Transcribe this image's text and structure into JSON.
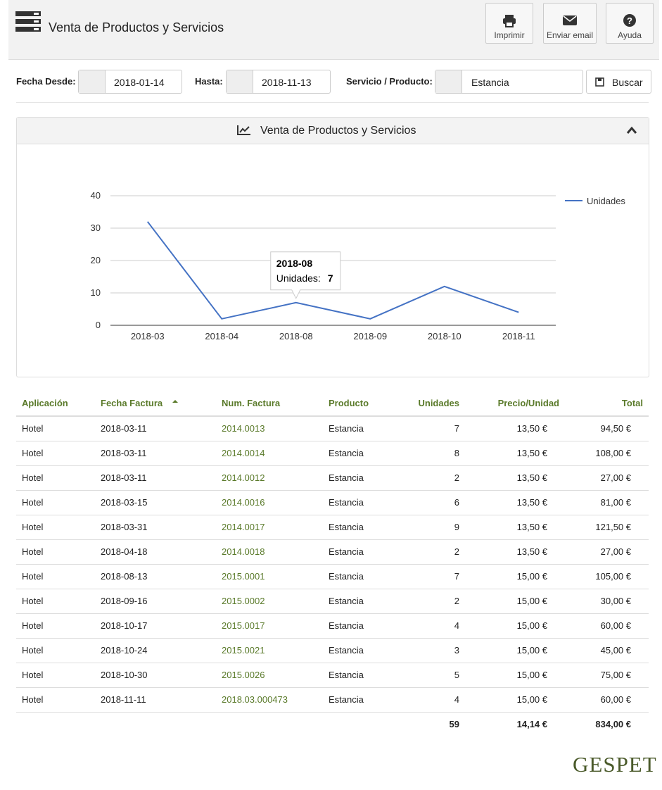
{
  "header": {
    "title": "Venta de Productos y Servicios",
    "buttons": [
      "Imprimir",
      "Enviar email",
      "Ayuda"
    ]
  },
  "filters": {
    "from_label": "Fecha Desde:",
    "from_value": "2018-01-14",
    "to_label": "Hasta:",
    "to_value": "2018-11-13",
    "product_label": "Servicio / Producto:",
    "product_value": "Estancia",
    "search_button": "Buscar"
  },
  "panel": {
    "title": "Venta de Productos y Servicios"
  },
  "chart_data": {
    "type": "line",
    "categories": [
      "2018-03",
      "2018-04",
      "2018-08",
      "2018-09",
      "2018-10",
      "2018-11"
    ],
    "series": [
      {
        "name": "Unidades",
        "color": "#4472c4",
        "values": [
          32,
          2,
          7,
          2,
          12,
          4
        ]
      }
    ],
    "ylim": [
      0,
      40
    ],
    "yticks": [
      0,
      10,
      20,
      30,
      40
    ],
    "grid": true,
    "legend": "right",
    "tooltip_label": "Unidades:"
  },
  "table": {
    "headers": [
      "Aplicación",
      "Fecha Factura",
      "Num. Factura",
      "Producto",
      "Unidades",
      "Precio/Unidad",
      "Total"
    ],
    "rows": [
      [
        "Hotel",
        "2018-03-11",
        "2014.0013",
        "Estancia",
        "7",
        "13,50 €",
        "94,50 €"
      ],
      [
        "Hotel",
        "2018-03-11",
        "2014.0014",
        "Estancia",
        "8",
        "13,50 €",
        "108,00 €"
      ],
      [
        "Hotel",
        "2018-03-11",
        "2014.0012",
        "Estancia",
        "2",
        "13,50 €",
        "27,00 €"
      ],
      [
        "Hotel",
        "2018-03-15",
        "2014.0016",
        "Estancia",
        "6",
        "13,50 €",
        "81,00 €"
      ],
      [
        "Hotel",
        "2018-03-31",
        "2014.0017",
        "Estancia",
        "9",
        "13,50 €",
        "121,50 €"
      ],
      [
        "Hotel",
        "2018-04-18",
        "2014.0018",
        "Estancia",
        "2",
        "13,50 €",
        "27,00 €"
      ],
      [
        "Hotel",
        "2018-08-13",
        "2015.0001",
        "Estancia",
        "7",
        "15,00 €",
        "105,00 €"
      ],
      [
        "Hotel",
        "2018-09-16",
        "2015.0002",
        "Estancia",
        "2",
        "15,00 €",
        "30,00 €"
      ],
      [
        "Hotel",
        "2018-10-17",
        "2015.0017",
        "Estancia",
        "4",
        "15,00 €",
        "60,00 €"
      ],
      [
        "Hotel",
        "2018-10-24",
        "2015.0021",
        "Estancia",
        "3",
        "15,00 €",
        "45,00 €"
      ],
      [
        "Hotel",
        "2018-10-30",
        "2015.0026",
        "Estancia",
        "5",
        "15,00 €",
        "75,00 €"
      ],
      [
        "Hotel",
        "2018-11-11",
        "2018.03.000473",
        "Estancia",
        "4",
        "15,00 €",
        "60,00 €"
      ]
    ],
    "totals": [
      "59",
      "14,14 €",
      "834,00 €"
    ]
  },
  "footer": {
    "logo": "GESPET"
  }
}
